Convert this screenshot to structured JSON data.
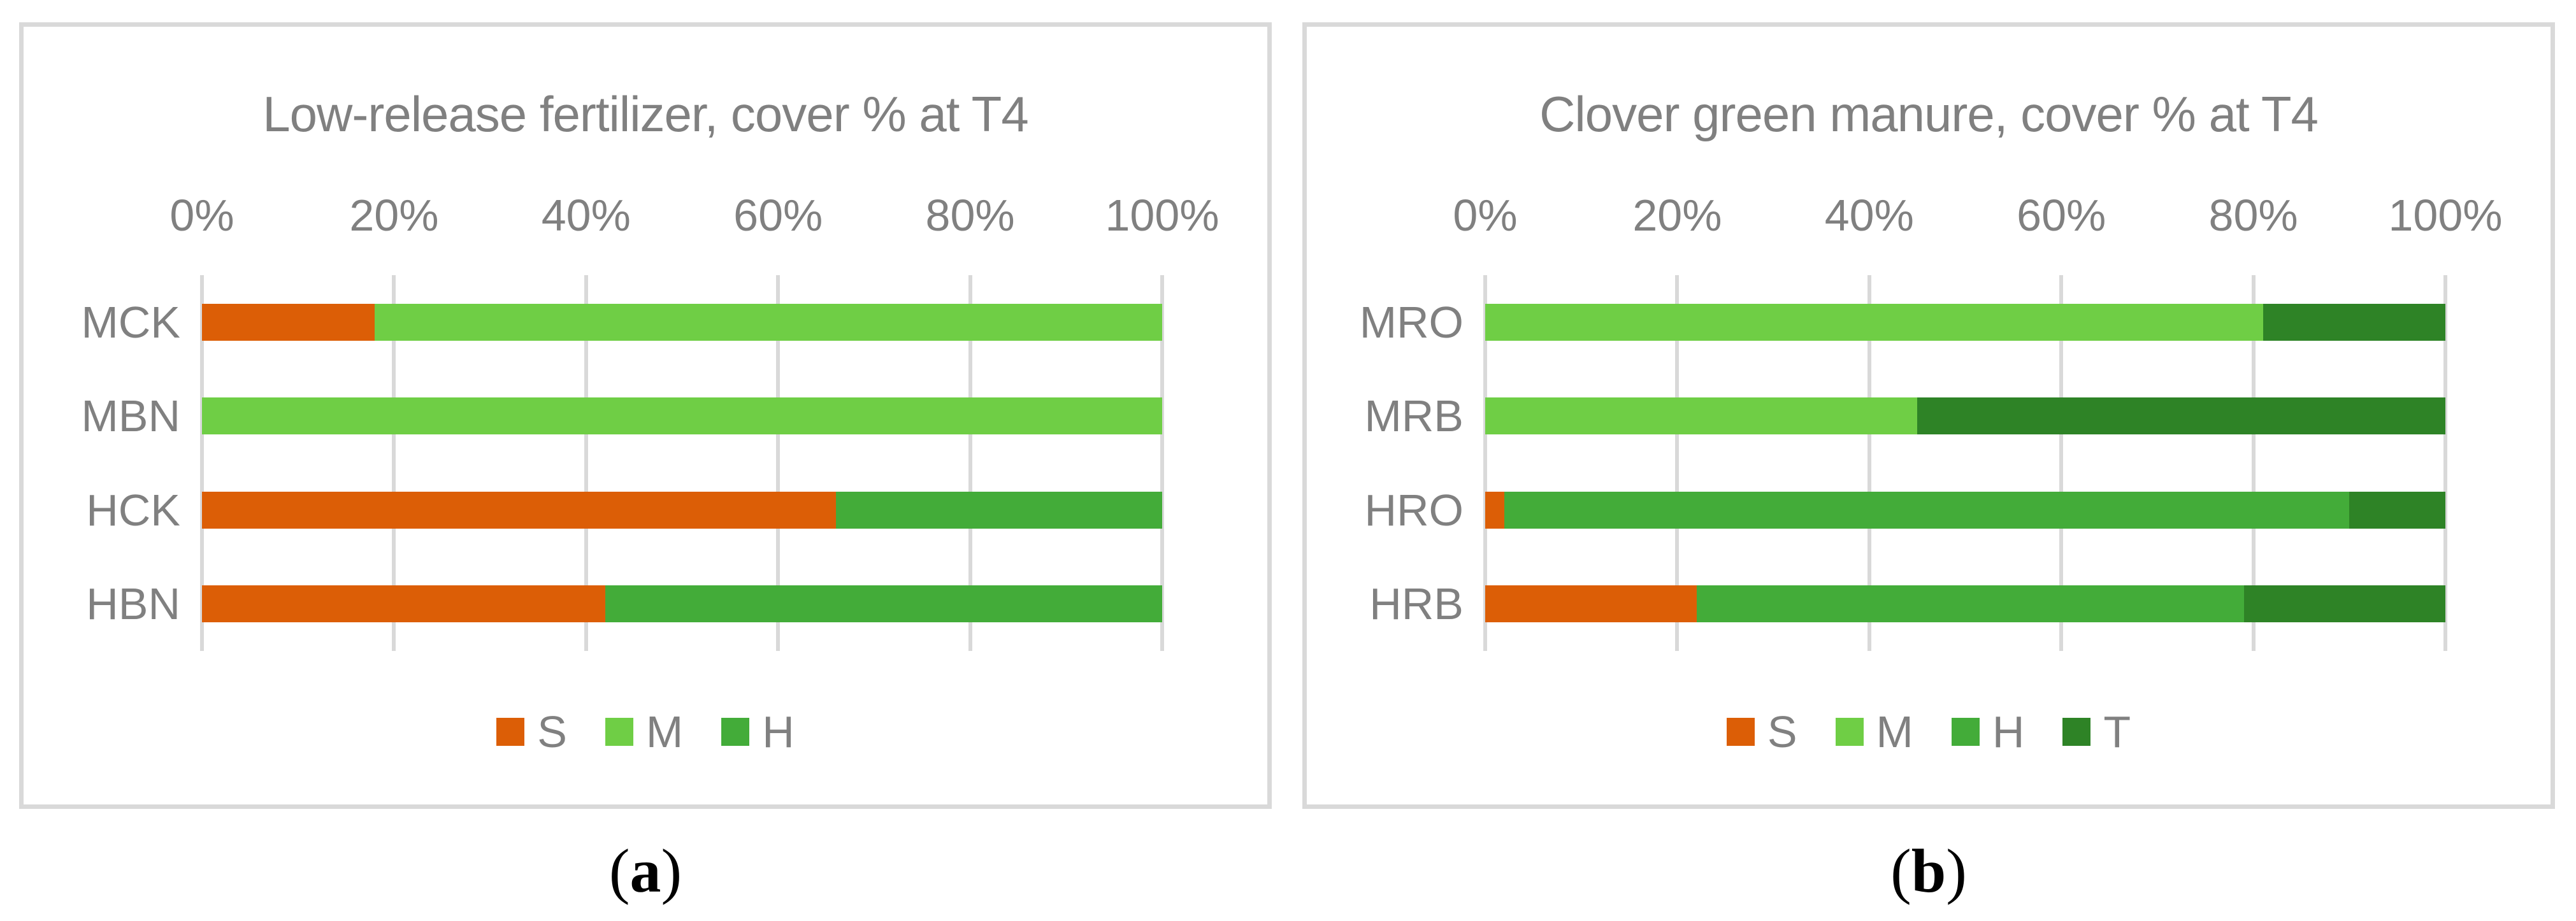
{
  "colors": {
    "series_S": "#DC5E06",
    "series_M": "#6FCE45",
    "series_H": "#43AC39",
    "series_T": "#2E8326",
    "text_gray": "#808080",
    "gridline": "#D9D9D9",
    "panel_border": "#D9D9D9"
  },
  "chart_data": [
    {
      "type": "bar",
      "orientation": "horizontal-stacked",
      "title": "Low-release fertilizer, cover % at T4",
      "categories": [
        "MCK",
        "MBN",
        "HCK",
        "HBN"
      ],
      "series": [
        {
          "name": "S",
          "color": "#DC5E06",
          "values": [
            18,
            0,
            66,
            42
          ]
        },
        {
          "name": "M",
          "color": "#6FCE45",
          "values": [
            82,
            100,
            0,
            0
          ]
        },
        {
          "name": "H",
          "color": "#43AC39",
          "values": [
            0,
            0,
            34,
            58
          ]
        }
      ],
      "x_ticks": [
        "0%",
        "20%",
        "40%",
        "60%",
        "80%",
        "100%"
      ],
      "xlim": [
        0,
        100
      ],
      "grid": true,
      "legend_position": "bottom",
      "caption_letter": "a",
      "caption_open": "(",
      "caption_close": ")"
    },
    {
      "type": "bar",
      "orientation": "horizontal-stacked",
      "title": "Clover green manure, cover % at T4",
      "categories": [
        "MRO",
        "MRB",
        "HRO",
        "HRB"
      ],
      "series": [
        {
          "name": "S",
          "color": "#DC5E06",
          "values": [
            0,
            0,
            2,
            22
          ]
        },
        {
          "name": "M",
          "color": "#6FCE45",
          "values": [
            81,
            45,
            0,
            0
          ]
        },
        {
          "name": "H",
          "color": "#43AC39",
          "values": [
            0,
            0,
            88,
            57
          ]
        },
        {
          "name": "T",
          "color": "#2E8326",
          "values": [
            19,
            55,
            10,
            21
          ]
        }
      ],
      "x_ticks": [
        "0%",
        "20%",
        "40%",
        "60%",
        "80%",
        "100%"
      ],
      "xlim": [
        0,
        100
      ],
      "grid": true,
      "legend_position": "bottom",
      "caption_letter": "b",
      "caption_open": "(",
      "caption_close": ")"
    }
  ]
}
